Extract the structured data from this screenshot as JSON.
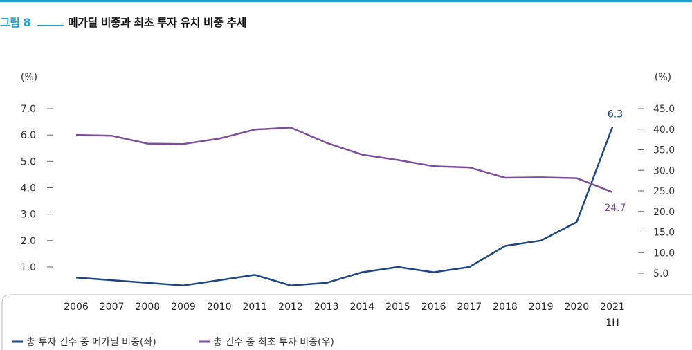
{
  "figure": {
    "label": "그림 8",
    "title": "메가딜 비중과 최초 투자 유치 비중 추세"
  },
  "colors": {
    "accent": "#1a9fd6",
    "series_left": "#1c4587",
    "series_right": "#7a4e9a"
  },
  "chart_data": {
    "type": "line",
    "title": "메가딜 비중과 최초 투자 유치 비중 추세",
    "x": [
      "2006",
      "2007",
      "2008",
      "2009",
      "2010",
      "2011",
      "2012",
      "2013",
      "2014",
      "2015",
      "2016",
      "2017",
      "2018",
      "2019",
      "2020",
      "2021"
    ],
    "x_sublabels": {
      "2021": "1H"
    },
    "left_axis": {
      "unit": "(%)",
      "ticks": [
        "7.0",
        "6.0",
        "5.0",
        "4.0",
        "3.0",
        "2.0",
        "1.0"
      ],
      "range": [
        0,
        7
      ]
    },
    "right_axis": {
      "unit": "(%)",
      "ticks": [
        "45.0",
        "40.0",
        "35.0",
        "30.0",
        "25.0",
        "20.0",
        "15.0",
        "10.0",
        "5.0"
      ],
      "range": [
        0,
        45
      ]
    },
    "series": [
      {
        "name": "총 투자 건수 중 메가딜 비중(좌)",
        "axis": "left",
        "color": "#1c4587",
        "values": [
          0.6,
          0.5,
          0.4,
          0.3,
          0.5,
          0.7,
          0.3,
          0.4,
          0.8,
          1.0,
          0.8,
          1.0,
          1.8,
          2.0,
          2.7,
          6.3
        ],
        "end_label": "6.3"
      },
      {
        "name": "총 건수 중 최초 투자 비중(우)",
        "axis": "right",
        "color": "#7a4e9a",
        "values": [
          38.6,
          38.4,
          36.5,
          36.4,
          37.7,
          39.9,
          40.4,
          36.7,
          33.8,
          32.5,
          31.0,
          30.7,
          28.2,
          28.3,
          28.1,
          24.7
        ],
        "end_label": "24.7"
      }
    ],
    "legend": "bottom-left",
    "grid": false
  }
}
